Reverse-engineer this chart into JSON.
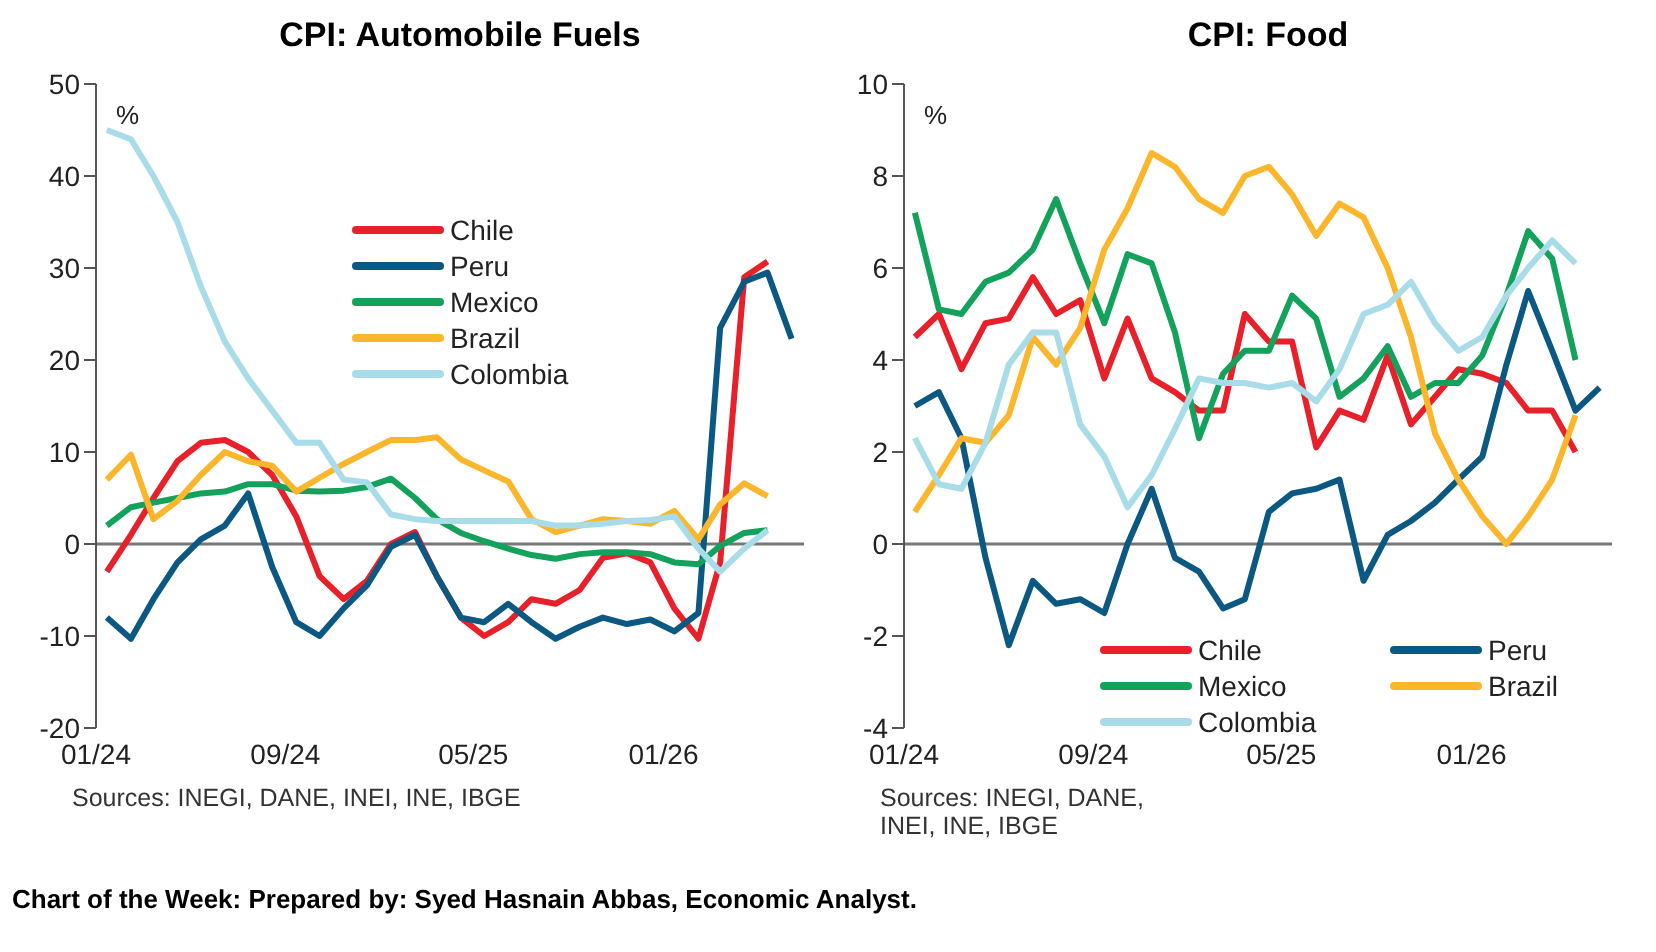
{
  "chart_data": [
    {
      "type": "line",
      "title": "CPI: Automobile Fuels",
      "ylabel": "%",
      "legend": "top right",
      "marker": "none",
      "x": [
        "2024-01-15",
        "2024-02-15",
        "2024-03-15",
        "2024-04-15",
        "2024-05-15",
        "2024-06-15",
        "2024-07-15",
        "2024-08-15",
        "2024-09-15",
        "2024-10-15",
        "2024-11-15",
        "2024-12-15",
        "2025-01-15",
        "2025-02-15",
        "2025-03-15",
        "2025-04-15",
        "2025-05-15",
        "2025-06-15",
        "2025-07-15",
        "2025-08-15",
        "2025-09-15",
        "2025-10-15",
        "2025-11-15",
        "2025-12-15",
        "2026-01-15",
        "2026-02-15",
        "2026-03-15",
        "2026-04-15",
        "2026-05-15",
        "2026-06-15"
      ],
      "xlim": [
        "2024-01-01",
        "2026-07-01"
      ],
      "xticks": [
        {
          "value": "2024-01-01",
          "label": "01/24"
        },
        {
          "value": "2024-09-01",
          "label": "09/24"
        },
        {
          "value": "2025-05-01",
          "label": "05/25"
        },
        {
          "value": "2026-01-01",
          "label": "01/26"
        }
      ],
      "ylim": [
        -20,
        50
      ],
      "yticks": [
        -20,
        -10,
        0,
        10,
        20,
        30,
        40,
        50
      ],
      "series": [
        {
          "name": "Chile",
          "color": "#e8202a",
          "values": [
            -3,
            1,
            5,
            9,
            11,
            11.3,
            10,
            7.5,
            3,
            -3.5,
            -6,
            -4,
            0,
            1.3,
            -3.5,
            -8,
            -10,
            -8.5,
            -6,
            -6.5,
            -5,
            -1.5,
            -1,
            -2,
            -7,
            -10.3,
            -2,
            29,
            30.7,
            null
          ]
        },
        {
          "name": "Peru",
          "color": "#0b5883",
          "values": [
            -8,
            -10.3,
            -6,
            -2,
            0.5,
            2,
            5.5,
            -2.5,
            -8.5,
            -10,
            -7,
            -4.5,
            -0.3,
            1,
            -3.5,
            -8,
            -8.5,
            -6.5,
            -8.5,
            -10.3,
            -9,
            -8,
            -8.7,
            -8.2,
            -9.5,
            -7.5,
            23.5,
            28.5,
            29.5,
            22.3
          ]
        },
        {
          "name": "Mexico",
          "color": "#12a25c",
          "values": [
            2,
            4,
            4.5,
            5,
            5.5,
            5.7,
            6.5,
            6.5,
            5.8,
            5.7,
            5.8,
            6.2,
            7.1,
            5,
            2.7,
            1.2,
            0.3,
            -0.5,
            -1.2,
            -1.6,
            -1.1,
            -0.9,
            -0.9,
            -1.1,
            -2,
            -2.2,
            -0.2,
            1.2,
            1.5,
            null
          ]
        },
        {
          "name": "Brazil",
          "color": "#fbb62b",
          "values": [
            7,
            9.7,
            2.7,
            4.7,
            7.5,
            10,
            9,
            8.5,
            5.7,
            7.2,
            8.7,
            10,
            11.3,
            11.3,
            11.6,
            9.2,
            8,
            6.8,
            2.7,
            1.3,
            2,
            2.7,
            2.5,
            2.2,
            3.6,
            0.5,
            4.3,
            6.6,
            5.2,
            null
          ]
        },
        {
          "name": "Colombia",
          "color": "#a8dce8",
          "values": [
            45,
            44,
            40,
            35,
            28,
            22,
            18,
            14.5,
            11,
            11,
            7,
            6.7,
            3.2,
            2.7,
            2.5,
            2.5,
            2.5,
            2.5,
            2.5,
            2,
            2,
            2.2,
            2.5,
            2.6,
            3,
            -0.5,
            -3,
            -0.5,
            1.5,
            null
          ]
        }
      ],
      "ref_lines": [
        {
          "axis": "y",
          "value": 0,
          "color": "#777777"
        }
      ],
      "annotations": [
        "Sources: INEGI, DANE, INEI, INE, IBGE",
        "Chart of the Week:  Prepared by: Syed Hasnain Abbas, Economic Analyst."
      ]
    },
    {
      "type": "line",
      "title": "CPI: Food",
      "ylabel": "%",
      "legend": "bottom",
      "marker": "none",
      "x": [
        "2024-01-15",
        "2024-02-15",
        "2024-03-15",
        "2024-04-15",
        "2024-05-15",
        "2024-06-15",
        "2024-07-15",
        "2024-08-15",
        "2024-09-15",
        "2024-10-15",
        "2024-11-15",
        "2024-12-15",
        "2025-01-15",
        "2025-02-15",
        "2025-03-15",
        "2025-04-15",
        "2025-05-15",
        "2025-06-15",
        "2025-07-15",
        "2025-08-15",
        "2025-09-15",
        "2025-10-15",
        "2025-11-15",
        "2025-12-15",
        "2026-01-15",
        "2026-02-15",
        "2026-03-15",
        "2026-04-15",
        "2026-05-15",
        "2026-06-15"
      ],
      "xlim": [
        "2024-01-01",
        "2026-07-01"
      ],
      "xticks": [
        {
          "value": "2024-01-01",
          "label": "01/24"
        },
        {
          "value": "2024-09-01",
          "label": "09/24"
        },
        {
          "value": "2025-05-01",
          "label": "05/25"
        },
        {
          "value": "2026-01-01",
          "label": "01/26"
        }
      ],
      "ylim": [
        -4,
        10
      ],
      "yticks": [
        -4,
        -2,
        0,
        2,
        4,
        6,
        8,
        10
      ],
      "series": [
        {
          "name": "Chile",
          "color": "#e8202a",
          "values": [
            4.5,
            5,
            3.8,
            4.8,
            4.9,
            5.8,
            5,
            5.3,
            3.6,
            4.9,
            3.6,
            3.3,
            2.9,
            2.9,
            5,
            4.4,
            4.4,
            2.1,
            2.9,
            2.7,
            4.1,
            2.6,
            3.2,
            3.8,
            3.7,
            3.5,
            2.9,
            2.9,
            2,
            null
          ]
        },
        {
          "name": "Peru",
          "color": "#0b5883",
          "values": [
            3,
            3.3,
            2.3,
            -0.3,
            -2.2,
            -0.8,
            -1.3,
            -1.2,
            -1.5,
            0,
            1.2,
            -0.3,
            -0.6,
            -1.4,
            -1.2,
            0.7,
            1.1,
            1.2,
            1.4,
            -0.8,
            0.2,
            0.5,
            0.9,
            1.4,
            1.9,
            3.9,
            5.5,
            4.2,
            2.9,
            3.4
          ]
        },
        {
          "name": "Mexico",
          "color": "#12a25c",
          "values": [
            7.2,
            5.1,
            5,
            5.7,
            5.9,
            6.4,
            7.5,
            6.1,
            4.8,
            6.3,
            6.1,
            4.6,
            2.3,
            3.7,
            4.2,
            4.2,
            5.4,
            4.9,
            3.2,
            3.6,
            4.3,
            3.2,
            3.5,
            3.5,
            4.1,
            5.4,
            6.8,
            6.2,
            4,
            null
          ]
        },
        {
          "name": "Brazil",
          "color": "#fbb62b",
          "values": [
            0.7,
            1.5,
            2.3,
            2.2,
            2.8,
            4.5,
            3.9,
            4.7,
            6.4,
            7.3,
            8.5,
            8.2,
            7.5,
            7.2,
            8,
            8.2,
            7.6,
            6.7,
            7.4,
            7.1,
            6,
            4.5,
            2.4,
            1.4,
            0.6,
            0,
            0.6,
            1.4,
            2.8,
            null
          ]
        },
        {
          "name": "Colombia",
          "color": "#a8dce8",
          "values": [
            2.3,
            1.3,
            1.2,
            2.2,
            3.9,
            4.6,
            4.6,
            2.6,
            1.9,
            0.8,
            1.5,
            2.5,
            3.6,
            3.5,
            3.5,
            3.4,
            3.5,
            3.1,
            3.8,
            5,
            5.2,
            5.7,
            4.8,
            4.2,
            4.5,
            5.4,
            6,
            6.6,
            6.1,
            null
          ]
        }
      ],
      "ref_lines": [
        {
          "axis": "y",
          "value": 0,
          "color": "#777777"
        }
      ],
      "annotations": [
        "Sources: INEGI, DANE,\nINEI, INE, IBGE"
      ]
    }
  ]
}
